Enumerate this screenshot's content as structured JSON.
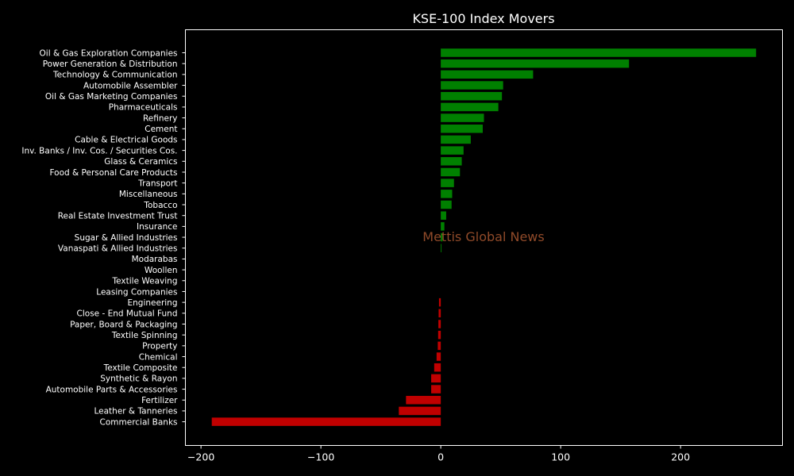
{
  "chart_data": {
    "type": "bar",
    "orientation": "horizontal",
    "title": "KSE-100 Index Movers",
    "xlabel": "",
    "ylabel": "",
    "xlim": [
      -213,
      285
    ],
    "xticks": [
      -200,
      -100,
      0,
      100,
      200
    ],
    "xtick_labels": [
      "−200",
      "−100",
      "0",
      "100",
      "200"
    ],
    "grid": false,
    "legend": "none",
    "colors": {
      "background": "#000000",
      "axes": "#ffffff",
      "text": "#ffffff",
      "positive": "#008000",
      "negative": "#c00000",
      "watermark": "#a0522d"
    },
    "categories": [
      "Oil & Gas Exploration Companies",
      "Power Generation & Distribution",
      "Technology & Communication",
      "Automobile Assembler",
      "Oil & Gas Marketing Companies",
      "Pharmaceuticals",
      "Refinery",
      "Cement",
      "Cable & Electrical Goods",
      "Inv. Banks / Inv. Cos. / Securities Cos.",
      "Glass & Ceramics",
      "Food & Personal Care Products",
      "Transport",
      "Miscellaneous",
      "Tobacco",
      "Real Estate Investment Trust",
      "Insurance",
      "Sugar & Allied Industries",
      "Vanaspati & Allied Industries",
      "Modarabas",
      "Woollen",
      "Textile Weaving",
      "Leasing Companies",
      "Engineering",
      "Close - End Mutual Fund",
      "Paper, Board & Packaging",
      "Textile Spinning",
      "Property",
      "Chemical",
      "Textile Composite",
      "Synthetic & Rayon",
      "Automobile Parts & Accessories",
      "Fertilizer",
      "Leather & Tanneries",
      "Commercial Banks"
    ],
    "values": [
      263,
      157,
      77,
      52,
      51,
      48,
      36,
      35,
      25,
      19,
      17.5,
      16,
      11,
      9.5,
      9,
      4.5,
      3,
      1.5,
      0.6,
      0,
      0,
      0,
      0,
      -1.5,
      -1.8,
      -2,
      -2.2,
      -2.5,
      -3.5,
      -5.5,
      -8,
      -8,
      -29,
      -35,
      -191
    ]
  },
  "watermark": "Mettis Global News"
}
